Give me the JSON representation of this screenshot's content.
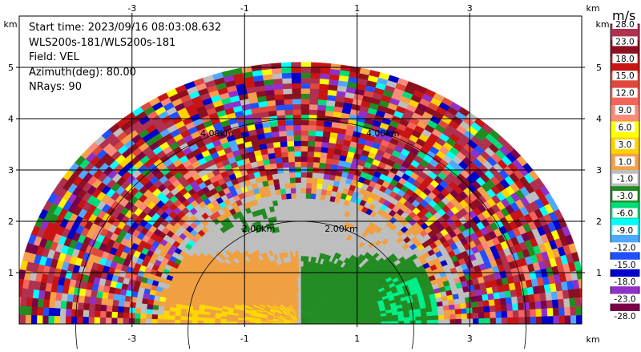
{
  "info": {
    "start_time": "Start time: 2023/09/16 08:03:08.632",
    "station": "WLS200s-181/WLS200s-181",
    "field": "Field: VEL",
    "azimuth": "Azimuth(deg): 80.00",
    "nrays": "NRays: 90"
  },
  "axes": {
    "x_ticks": [
      "-3",
      "-1",
      "1",
      "3"
    ],
    "y_ticks": [
      "1",
      "2",
      "3",
      "4",
      "5"
    ],
    "x_unit": "km",
    "y_unit": "km"
  },
  "range_rings": [
    "2.00km",
    "4.00km"
  ],
  "colorbar": {
    "unit": "m/s",
    "labels": [
      "28.0",
      "23.0",
      "18.0",
      "15.0",
      "12.0",
      "9.0",
      "6.0",
      "3.0",
      "1.0",
      "-1.0",
      "-3.0",
      "-6.0",
      "-9.0",
      "-12.0",
      "-15.0",
      "-18.0",
      "-23.0",
      "-28.0"
    ],
    "colors": [
      "#b03050",
      "#8c1020",
      "#c81414",
      "#e0483c",
      "#f4645a",
      "#f88c78",
      "#ffff00",
      "#ffd200",
      "#f5a04a",
      "#bebebe",
      "#228b22",
      "#00dc78",
      "#00ffff",
      "#4fa8ff",
      "#2050ff",
      "#0000c8",
      "#9030c8",
      "#7a004a"
    ]
  },
  "palette": {
    "ground_gray": "#bebebe",
    "incoming_green": "#228b22",
    "bright_green": "#00ee88",
    "outgoing_orange": "#f0a040",
    "yellow": "#ffd700"
  }
}
